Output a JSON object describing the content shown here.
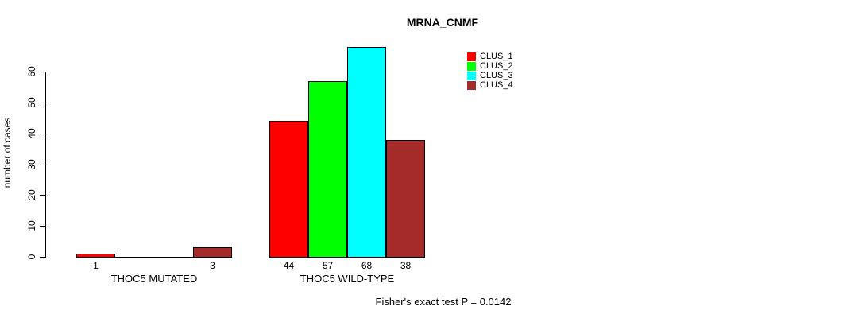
{
  "title": "MRNA_CNMF",
  "y_axis": {
    "label": "number of cases",
    "ticks": [
      0,
      10,
      20,
      30,
      40,
      50,
      60
    ]
  },
  "legend": {
    "items": [
      {
        "label": "CLUS_1",
        "color": "#FF0000"
      },
      {
        "label": "CLUS_2",
        "color": "#00FF00"
      },
      {
        "label": "CLUS_3",
        "color": "#00FFFF"
      },
      {
        "label": "CLUS_4",
        "color": "#A52A2A"
      }
    ]
  },
  "footer": "Fisher's exact test P = 0.0142",
  "chart_data": {
    "type": "bar",
    "title": "MRNA_CNMF",
    "xlabel": "",
    "ylabel": "number of cases",
    "ylim": [
      0,
      60
    ],
    "yticks": [
      0,
      10,
      20,
      30,
      40,
      50,
      60
    ],
    "grid": false,
    "legend_position": "top-right",
    "series": [
      "CLUS_1",
      "CLUS_2",
      "CLUS_3",
      "CLUS_4"
    ],
    "colors": [
      "#FF0000",
      "#00FF00",
      "#00FFFF",
      "#A52A2A"
    ],
    "groups": [
      {
        "label": "THOC5 MUTATED",
        "values": [
          1,
          0,
          0,
          3
        ],
        "bar_labels": [
          "1",
          "",
          "",
          "3"
        ]
      },
      {
        "label": "THOC5 WILD-TYPE",
        "values": [
          44,
          57,
          68,
          38
        ],
        "bar_labels": [
          "44",
          "57",
          "68",
          "38"
        ]
      }
    ],
    "annotation": "Fisher's exact test P = 0.0142"
  }
}
